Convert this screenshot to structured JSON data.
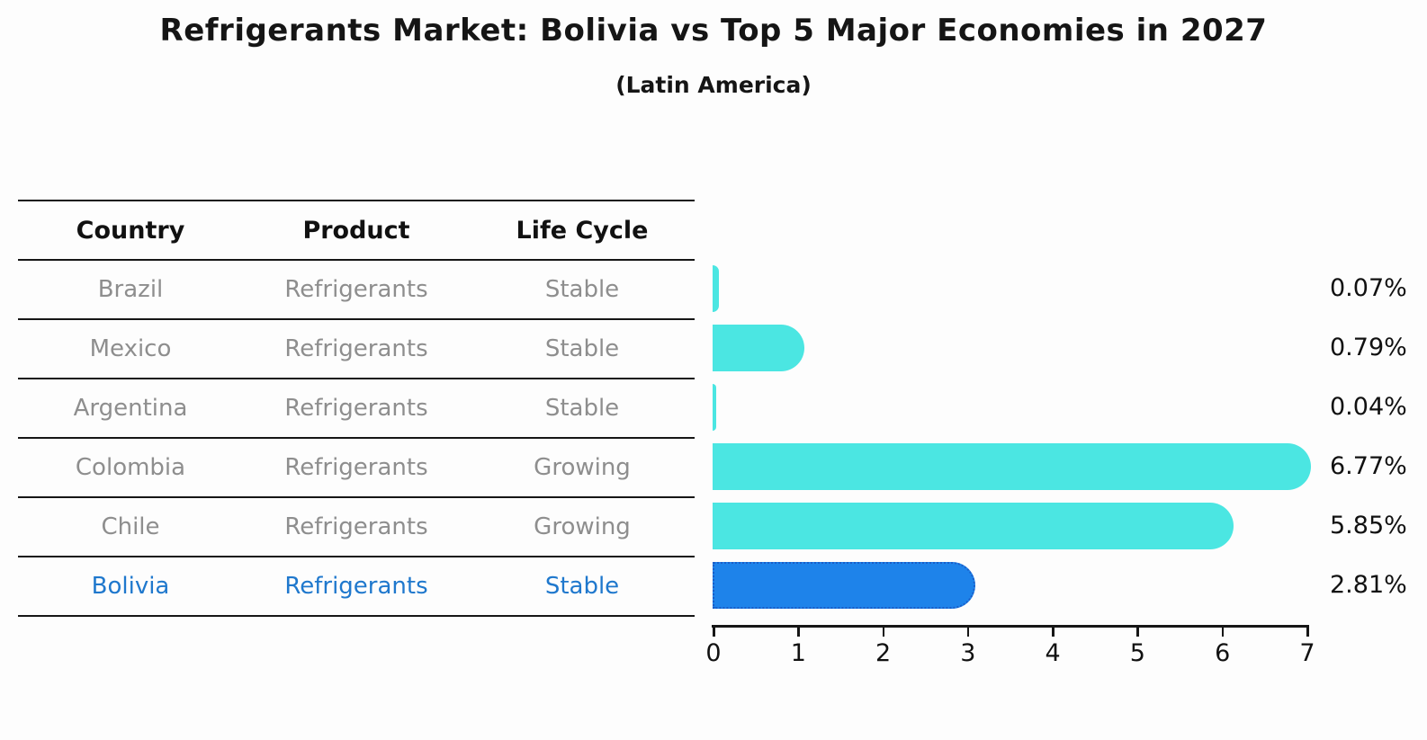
{
  "title": "Refrigerants Market: Bolivia vs Top 5 Major Economies in 2027",
  "subtitle": "(Latin America)",
  "table": {
    "headers": [
      "Country",
      "Product",
      "Life Cycle"
    ],
    "rows": [
      {
        "country": "Brazil",
        "product": "Refrigerants",
        "life_cycle": "Stable"
      },
      {
        "country": "Mexico",
        "product": "Refrigerants",
        "life_cycle": "Stable"
      },
      {
        "country": "Argentina",
        "product": "Refrigerants",
        "life_cycle": "Stable"
      },
      {
        "country": "Colombia",
        "product": "Refrigerants",
        "life_cycle": "Growing"
      },
      {
        "country": "Chile",
        "product": "Refrigerants",
        "life_cycle": "Growing"
      },
      {
        "country": "Bolivia",
        "product": "Refrigerants",
        "life_cycle": "Stable"
      }
    ],
    "highlight_row": "Bolivia"
  },
  "chart_data": {
    "type": "bar",
    "orientation": "horizontal",
    "categories": [
      "Brazil",
      "Mexico",
      "Argentina",
      "Colombia",
      "Chile",
      "Bolivia"
    ],
    "values": [
      0.07,
      0.79,
      0.04,
      6.77,
      5.85,
      2.81
    ],
    "labels": [
      "0.07%",
      "0.79%",
      "0.04%",
      "6.77%",
      "5.85%",
      "2.81%"
    ],
    "xticks": [
      0,
      1,
      2,
      3,
      4,
      5,
      6,
      7
    ],
    "xlim": [
      0,
      7
    ],
    "grid": false,
    "legend": false,
    "bar_color": "#4be6e2",
    "highlight_color": "#1e83ea",
    "highlight_index": 5,
    "highlight_border": "#1a5dc8",
    "title": "Refrigerants Market: Bolivia vs Top 5 Major Economies in 2027",
    "subtitle": "(Latin America)"
  }
}
